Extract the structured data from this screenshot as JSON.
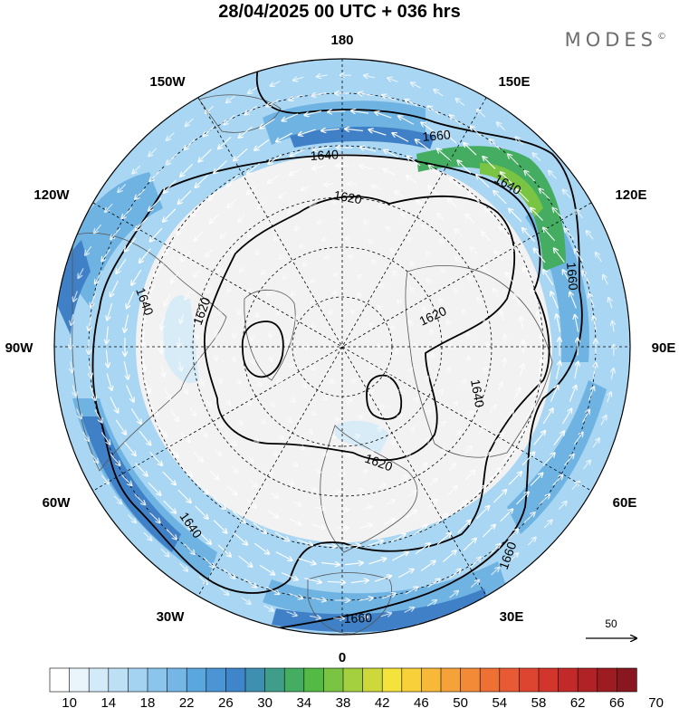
{
  "title": "28/04/2025  00 UTC  + 036 hrs",
  "brand": "MODES",
  "brand_mark": "©",
  "longitude_labels": {
    "top": "180",
    "bottom": "0",
    "left": "90W",
    "right": "90E",
    "upper_left_1": "150W",
    "upper_left_2": "120W",
    "upper_right_1": "150E",
    "upper_right_2": "120E",
    "lower_left_1": "60W",
    "lower_left_2": "30W",
    "lower_right_1": "60E",
    "lower_right_2": "30E"
  },
  "contour_labels": [
    "1660",
    "1640",
    "1640",
    "1620",
    "1620",
    "1620",
    "1640",
    "1620",
    "1640",
    "1660",
    "1660",
    "1640",
    "1660",
    "1640"
  ],
  "wind_reference": {
    "value": "50"
  },
  "colorbar": {
    "ticks": [
      "10",
      "14",
      "18",
      "22",
      "26",
      "30",
      "34",
      "38",
      "42",
      "46",
      "50",
      "54",
      "58",
      "62",
      "66",
      "70"
    ],
    "colors": [
      "#ffffff",
      "#eaf4fb",
      "#d3ebf8",
      "#bde0f5",
      "#a4d2f1",
      "#8cc5ec",
      "#74b6e6",
      "#5aa6de",
      "#4b95d4",
      "#3f85ca",
      "#3f8fb0",
      "#3f9e8a",
      "#44ad62",
      "#52ba45",
      "#79c443",
      "#a4cf3f",
      "#cdd83b",
      "#f3e33b",
      "#f7d03a",
      "#f8b93a",
      "#f5a23a",
      "#f28a38",
      "#ee7035",
      "#e85a33",
      "#de4530",
      "#d2352c",
      "#c22a29",
      "#b02226",
      "#9c1c22",
      "#881720"
    ]
  }
}
